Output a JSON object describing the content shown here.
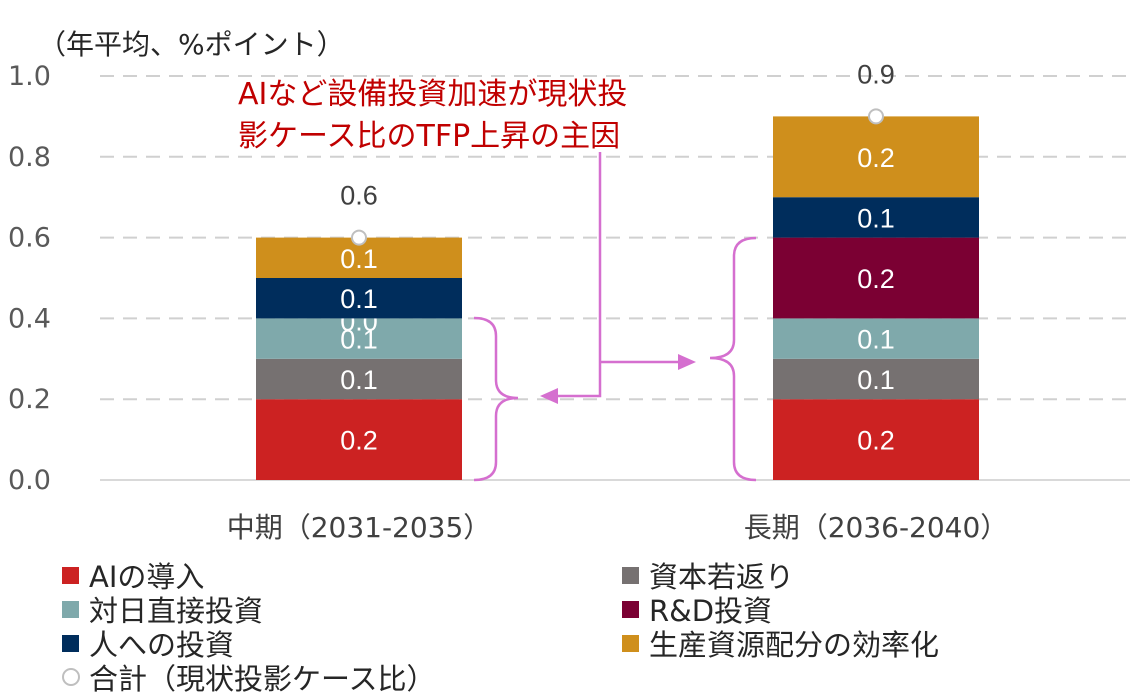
{
  "colors": {
    "ai": "#cc2222",
    "capital": "#767171",
    "fdi": "#7fa9ab",
    "rd": "#7b0033",
    "human": "#002d5c",
    "alloc": "#cf8f1c",
    "bracket": "#d56fcf",
    "annotation": "#c00000"
  },
  "chart_data": {
    "type": "bar",
    "stacked": true,
    "unit_label": "（年平均、%ポイント）",
    "categories": [
      "中期（2031-2035）",
      "長期（2036-2040）"
    ],
    "ylim": [
      0,
      1.0
    ],
    "yticks": [
      "0.0",
      "0.2",
      "0.4",
      "0.6",
      "0.8",
      "1.0"
    ],
    "grid": true,
    "legend_position": "bottom",
    "series": [
      {
        "name": "AIの導入",
        "values": [
          0.2,
          0.2
        ],
        "labels": [
          "0.2",
          "0.2"
        ],
        "color": "#cc2222"
      },
      {
        "name": "資本若返り",
        "values": [
          0.1,
          0.1
        ],
        "labels": [
          "0.1",
          "0.1"
        ],
        "color": "#767171"
      },
      {
        "name": "対日直接投資",
        "values": [
          0.1,
          0.1
        ],
        "labels": [
          "0.1",
          "0.1"
        ],
        "color": "#7fa9ab"
      },
      {
        "name": "R&D投資",
        "values": [
          0.0,
          0.2
        ],
        "labels": [
          "0.0",
          "0.2"
        ],
        "color": "#7b0033"
      },
      {
        "name": "人への投資",
        "values": [
          0.1,
          0.1
        ],
        "labels": [
          "0.1",
          "0.1"
        ],
        "color": "#002d5c"
      },
      {
        "name": "生産資源配分の効率化",
        "values": [
          0.1,
          0.2
        ],
        "labels": [
          "0.1",
          "0.2"
        ],
        "color": "#cf8f1c"
      }
    ],
    "totals": {
      "name": "合計（現状投影ケース比）",
      "values": [
        0.6,
        0.9
      ],
      "labels": [
        "0.6",
        "0.9"
      ]
    },
    "annotation": [
      "AIなど設備投資加速が現状投",
      "影ケース比のTFP上昇の主因"
    ]
  },
  "legend": [
    {
      "label": "AIの導入",
      "color": "#cc2222"
    },
    {
      "label": "資本若返り",
      "color": "#767171"
    },
    {
      "label": "対日直接投資",
      "color": "#7fa9ab"
    },
    {
      "label": "R&D投資",
      "color": "#7b0033"
    },
    {
      "label": "人への投資",
      "color": "#002d5c"
    },
    {
      "label": "生産資源配分の効率化",
      "color": "#cf8f1c"
    },
    {
      "label": "合計（現状投影ケース比）",
      "color": "circle"
    }
  ]
}
